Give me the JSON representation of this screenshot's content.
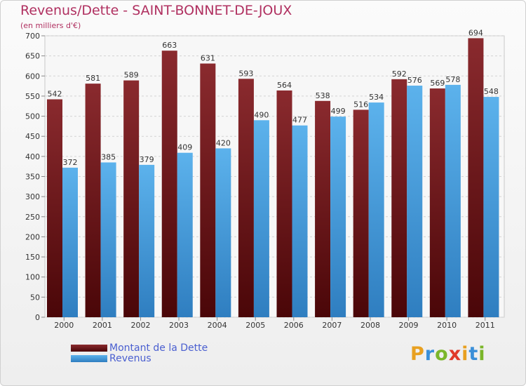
{
  "chart_data": {
    "type": "bar",
    "title": "Revenus/Dette - SAINT-BONNET-DE-JOUX",
    "subtitle": "(en milliers d'€)",
    "categories": [
      "2000",
      "2001",
      "2002",
      "2003",
      "2004",
      "2005",
      "2006",
      "2007",
      "2008",
      "2009",
      "2010",
      "2011"
    ],
    "series": [
      {
        "name": "Montant de la Dette",
        "color": "#7a1e22",
        "values": [
          542,
          581,
          589,
          663,
          631,
          593,
          564,
          538,
          516,
          592,
          569,
          694
        ]
      },
      {
        "name": "Revenus",
        "color": "#4ca3e0",
        "values": [
          372,
          385,
          379,
          409,
          420,
          490,
          477,
          499,
          534,
          576,
          578,
          548
        ]
      }
    ],
    "ylim": [
      0,
      700
    ],
    "yticks": [
      0,
      50,
      100,
      150,
      200,
      250,
      300,
      350,
      400,
      450,
      500,
      550,
      600,
      650,
      700
    ],
    "grid": true,
    "legend": "bottom-left"
  },
  "logo": {
    "letters": [
      "P",
      "r",
      "o",
      "x",
      "i",
      "t",
      "i"
    ],
    "colors": [
      "#e8a020",
      "#3a8fd8",
      "#7bb62a",
      "#e03a2a",
      "#e8a020",
      "#3a8fd8",
      "#7bb62a"
    ]
  }
}
